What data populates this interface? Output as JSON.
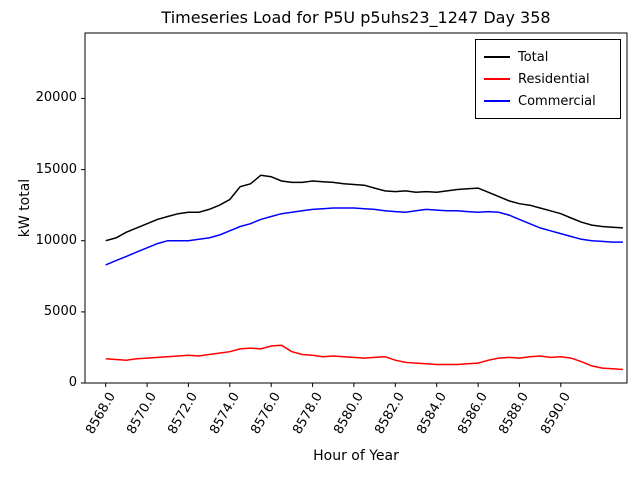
{
  "figure": {
    "title": "Timeseries Load for P5U p5uhs23_1247  Day 358",
    "xlabel": "Hour of Year",
    "ylabel": "kW total"
  },
  "chart_data": {
    "type": "line",
    "title": "Timeseries Load for P5U p5uhs23_1247  Day 358",
    "xlabel": "Hour of Year",
    "ylabel": "kW total",
    "xlim": [
      8567.0,
      8593.2
    ],
    "ylim": [
      0,
      24600
    ],
    "grid": false,
    "legend_position": "upper right",
    "x_ticks": [
      8568,
      8570,
      8572,
      8574,
      8576,
      8578,
      8580,
      8582,
      8584,
      8586,
      8588,
      8590
    ],
    "x_tick_labels": [
      "8568.0",
      "8570.0",
      "8572.0",
      "8574.0",
      "8576.0",
      "8578.0",
      "8580.0",
      "8582.0",
      "8584.0",
      "8586.0",
      "8588.0",
      "8590.0"
    ],
    "y_ticks": [
      0,
      5000,
      10000,
      15000,
      20000
    ],
    "y_tick_labels": [
      "0",
      "5000",
      "10000",
      "15000",
      "20000"
    ],
    "x": [
      8568,
      8568.5,
      8569,
      8569.5,
      8570,
      8570.5,
      8571,
      8571.5,
      8572,
      8572.5,
      8573,
      8573.5,
      8574,
      8574.5,
      8575,
      8575.5,
      8576,
      8576.5,
      8577,
      8577.5,
      8578,
      8578.5,
      8579,
      8579.5,
      8580,
      8580.5,
      8581,
      8581.5,
      8582,
      8582.5,
      8583,
      8583.5,
      8584,
      8584.5,
      8585,
      8585.5,
      8586,
      8586.5,
      8587,
      8587.5,
      8588,
      8588.5,
      8589,
      8589.5,
      8590,
      8590.5,
      8591,
      8591.5,
      8592,
      8592.5,
      8593
    ],
    "series": [
      {
        "name": "Total",
        "color": "#000000",
        "values": [
          10000,
          10200,
          10600,
          10900,
          11200,
          11500,
          11700,
          11900,
          12000,
          12000,
          12200,
          12500,
          12900,
          13800,
          14000,
          14600,
          14500,
          14200,
          14100,
          14100,
          14200,
          14150,
          14100,
          14000,
          13950,
          13900,
          13700,
          13500,
          13450,
          13500,
          13400,
          13450,
          13400,
          13500,
          13600,
          13650,
          13700,
          13400,
          13100,
          12800,
          12600,
          12500,
          12300,
          12100,
          11900,
          11600,
          11300,
          11100,
          11000,
          10950,
          10900
        ]
      },
      {
        "name": "Residential",
        "color": "#ff0000",
        "values": [
          1700,
          1650,
          1600,
          1700,
          1750,
          1800,
          1850,
          1900,
          1950,
          1900,
          2000,
          2100,
          2200,
          2400,
          2450,
          2400,
          2600,
          2650,
          2200,
          2000,
          1950,
          1850,
          1900,
          1850,
          1800,
          1750,
          1800,
          1850,
          1600,
          1450,
          1400,
          1350,
          1300,
          1300,
          1300,
          1350,
          1400,
          1600,
          1750,
          1800,
          1750,
          1850,
          1900,
          1800,
          1850,
          1750,
          1500,
          1200,
          1050,
          1000,
          950
        ]
      },
      {
        "name": "Commercial",
        "color": "#0000ff",
        "values": [
          8300,
          8600,
          8900,
          9200,
          9500,
          9800,
          10000,
          10000,
          10000,
          10100,
          10200,
          10400,
          10700,
          11000,
          11200,
          11500,
          11700,
          11900,
          12000,
          12100,
          12200,
          12250,
          12300,
          12300,
          12300,
          12250,
          12200,
          12100,
          12050,
          12000,
          12100,
          12200,
          12150,
          12100,
          12100,
          12050,
          12000,
          12050,
          12000,
          11800,
          11500,
          11200,
          10900,
          10700,
          10500,
          10300,
          10100,
          10000,
          9950,
          9900,
          9900
        ]
      }
    ]
  }
}
